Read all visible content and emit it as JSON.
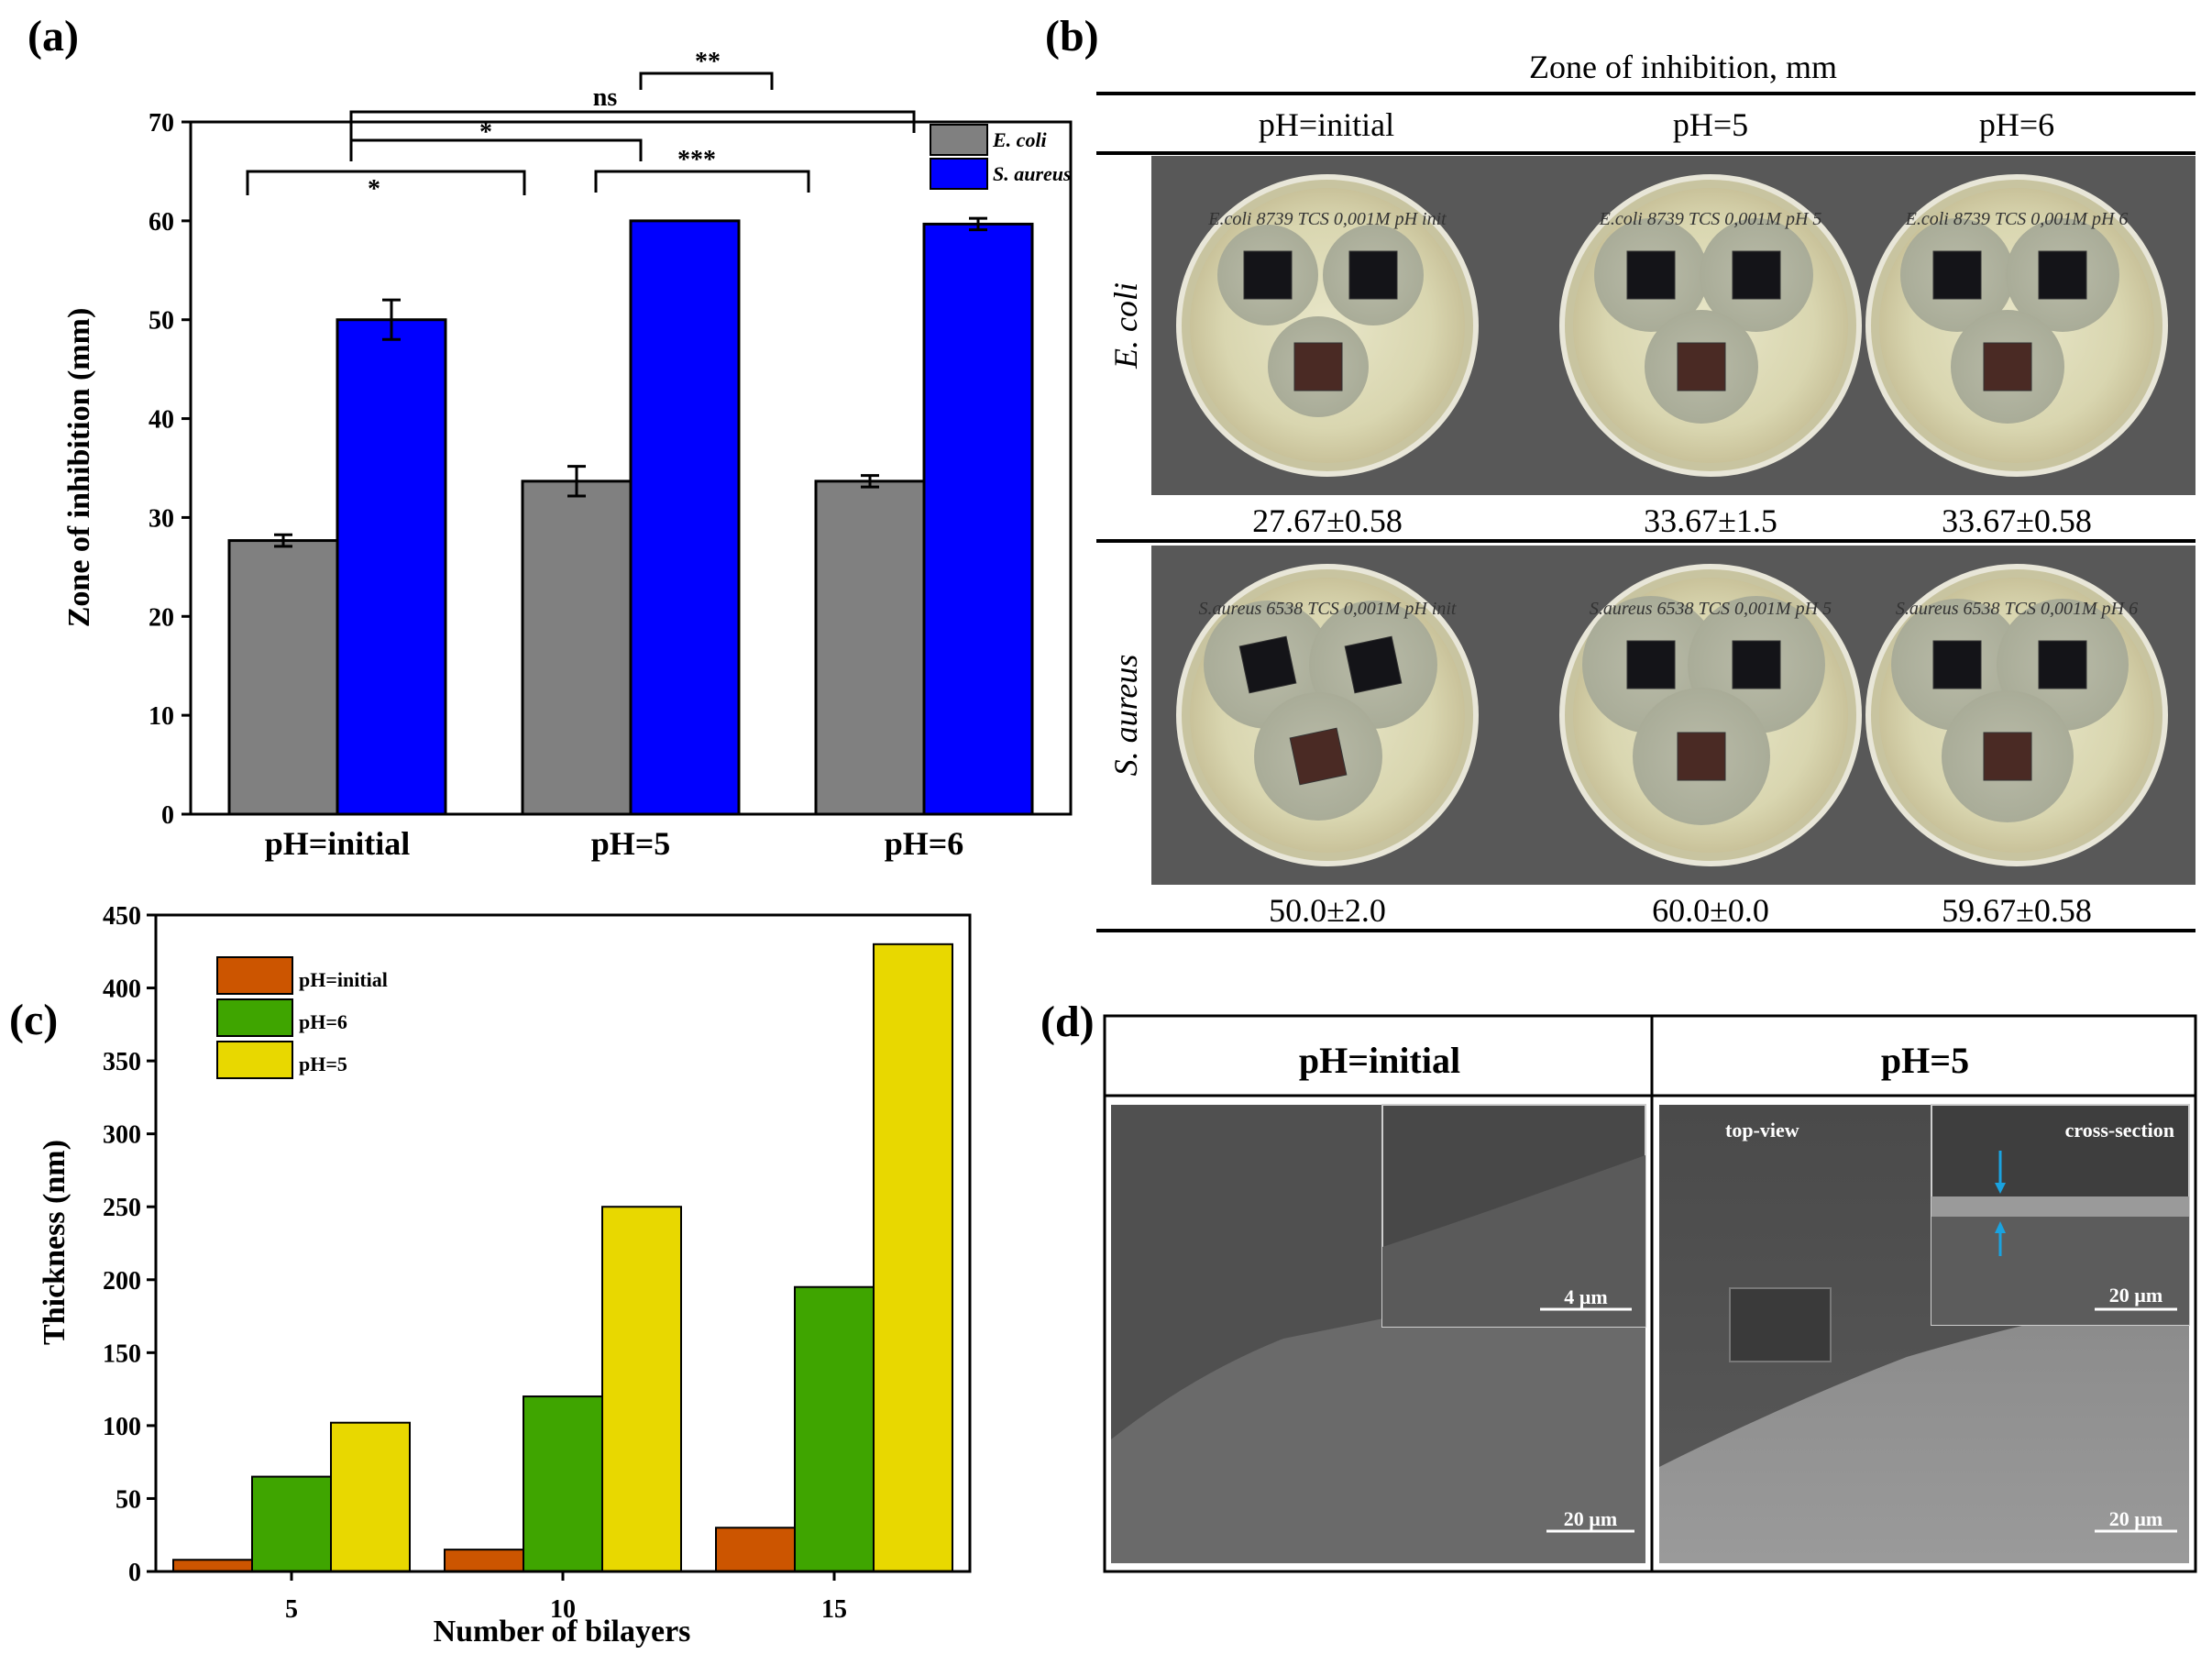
{
  "panels": {
    "a": {
      "letter": "(a)",
      "chart_data": {
        "type": "bar",
        "title": "",
        "xlabel": "",
        "ylabel": "Zone of inhibition (mm)",
        "ylim": [
          0,
          70
        ],
        "yticks": [
          "0",
          "10",
          "20",
          "30",
          "40",
          "50",
          "60",
          "70"
        ],
        "categories": [
          "pH=initial",
          "pH=5",
          "pH=6"
        ],
        "series": [
          {
            "name": "E. coli",
            "color": "#808080",
            "values": [
              27.67,
              33.67,
              33.67
            ],
            "errors": [
              0.58,
              1.5,
              0.58
            ]
          },
          {
            "name": "S. aureus",
            "color": "#0000ff",
            "values": [
              50.0,
              60.0,
              59.67
            ],
            "errors": [
              2.0,
              0.0,
              0.58
            ]
          }
        ],
        "legend_position": "top-right",
        "significance": [
          {
            "label": "*",
            "from": 0,
            "to": 1
          },
          {
            "label": "*",
            "from": 1,
            "to": 2
          },
          {
            "label": "***",
            "from": 2,
            "to": 3
          },
          {
            "label": "ns",
            "from": 1,
            "to": 3
          },
          {
            "label": "**",
            "from": 2,
            "to": 3
          }
        ]
      }
    },
    "b": {
      "letter": "(b)",
      "table_title": "Zone of inhibition, mm",
      "columns": [
        "pH=initial",
        "pH=5",
        "pH=6"
      ],
      "rows": [
        {
          "organism": "E. coli",
          "values": [
            "27.67±0.58",
            "33.67±1.5",
            "33.67±0.58"
          ],
          "plate_texts": [
            "E.coli 8739 TCS 0,001M pH init",
            "E.coli 8739 TCS 0,001M pH 5",
            "E.coli 8739 TCS 0,001M pH 6"
          ]
        },
        {
          "organism": "S. aureus",
          "values": [
            "50.0±2.0",
            "60.0±0.0",
            "59.67±0.58"
          ],
          "plate_texts": [
            "S.aureus 6538 TCS 0,001M pH init",
            "S.aureus 6538 TCS 0,001M pH 5",
            "S.aureus 6538 TCS 0,001M pH 6"
          ]
        }
      ]
    },
    "c": {
      "letter": "(c)",
      "chart_data": {
        "type": "bar",
        "title": "",
        "xlabel": "Number of bilayers",
        "ylabel": "Thickness (nm)",
        "ylim": [
          0,
          450
        ],
        "yticks": [
          "0",
          "50",
          "100",
          "150",
          "200",
          "250",
          "300",
          "350",
          "400",
          "450"
        ],
        "categories": [
          "5",
          "10",
          "15"
        ],
        "series": [
          {
            "name": "pH=initial",
            "color": "#cc5500",
            "values": [
              8,
              15,
              30
            ]
          },
          {
            "name": "pH=6",
            "color": "#3fa500",
            "values": [
              65,
              120,
              195
            ]
          },
          {
            "name": "pH=5",
            "color": "#e8d800",
            "values": [
              102,
              250,
              430
            ]
          }
        ],
        "legend_position": "top-left"
      }
    },
    "d": {
      "letter": "(d)",
      "columns": [
        "pH=initial",
        "pH=5"
      ],
      "left": {
        "inset_scale": "4 µm",
        "main_scale": "20 µm"
      },
      "right": {
        "top_label": "top-view",
        "inset_label": "cross-section",
        "inset_scale": "20 µm",
        "main_scale": "20 µm"
      }
    }
  }
}
